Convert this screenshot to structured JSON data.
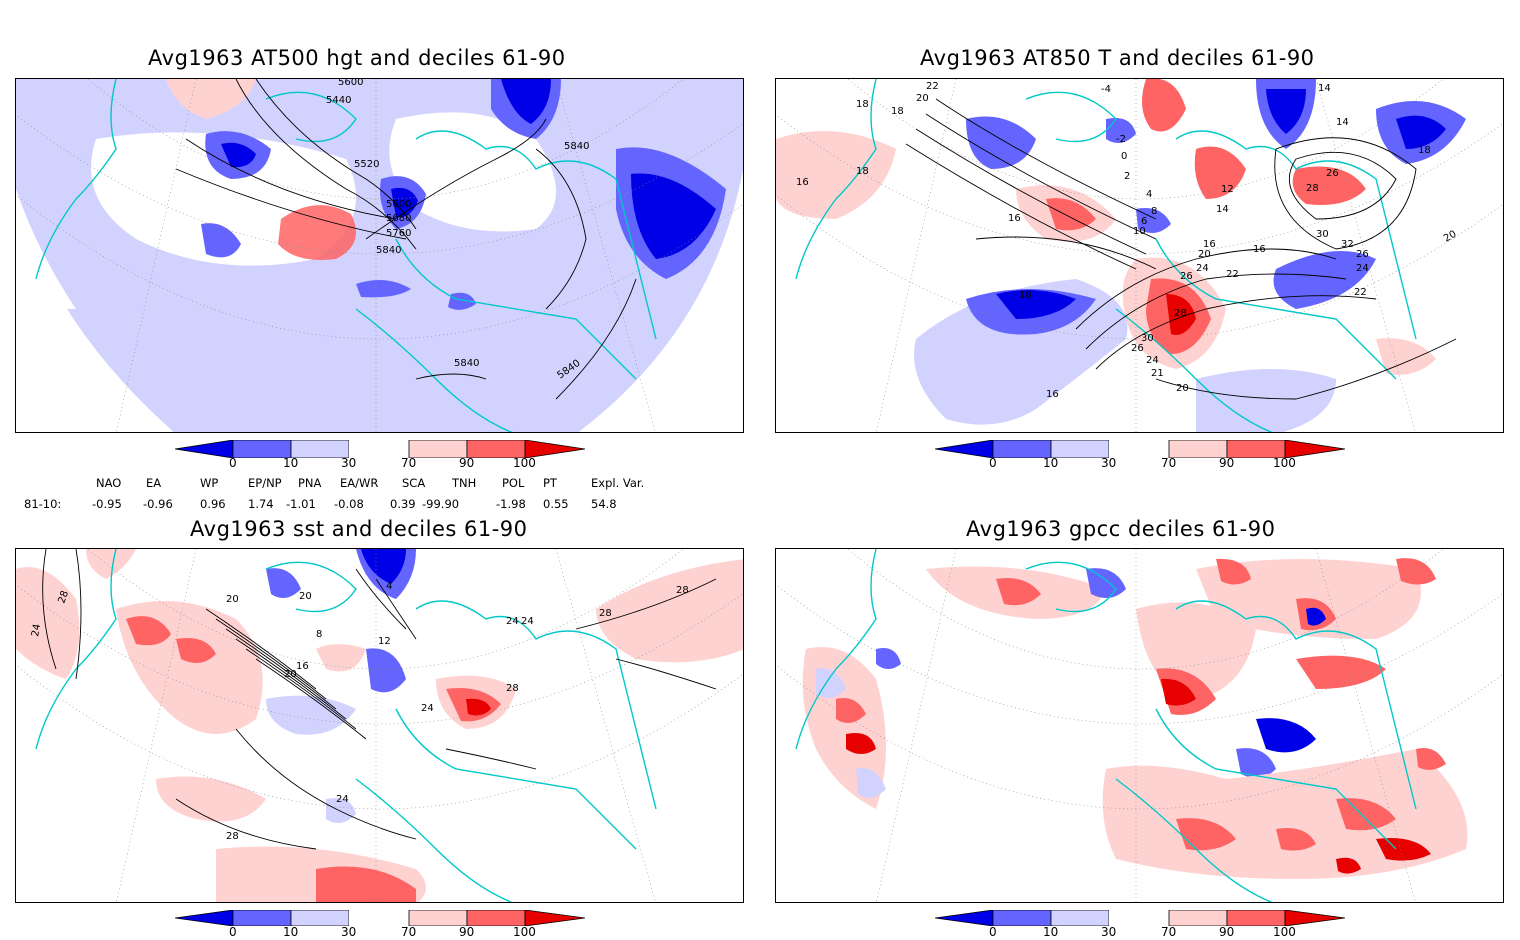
{
  "panels": {
    "p1": {
      "title": "Avg1963 AT500 hgt and deciles 61-90",
      "contour_labels": [
        "5600",
        "5440",
        "5520",
        "5840",
        "5600",
        "5680",
        "5760",
        "5840",
        "5840",
        "5840"
      ]
    },
    "p2": {
      "title": "Avg1963 AT850 T and deciles 61-90",
      "contour_labels": [
        "22",
        "20",
        "18",
        "18",
        "18",
        "16",
        "16",
        "-4",
        "-2",
        "0",
        "2",
        "4",
        "6",
        "8",
        "10",
        "12",
        "14",
        "16",
        "16",
        "20",
        "22",
        "24",
        "26",
        "28",
        "30",
        "26",
        "24",
        "21",
        "20",
        "18",
        "16",
        "14",
        "14",
        "26",
        "28",
        "30",
        "32",
        "26",
        "24",
        "22",
        "20",
        "18",
        "16",
        "16"
      ]
    },
    "p3": {
      "title": "Avg1963 sst and deciles 61-90",
      "contour_labels": [
        "28",
        "24",
        "20",
        "8",
        "12",
        "16",
        "20",
        "24",
        "28",
        "28",
        "24",
        "24",
        "28",
        "24",
        "28",
        "20",
        "4"
      ]
    },
    "p4": {
      "title": "Avg1963 gpcc deciles 61-90"
    }
  },
  "colorbar": {
    "labels": [
      "0",
      "10",
      "30",
      "70",
      "90",
      "100"
    ],
    "colors": [
      "#0000e6",
      "#6464ff",
      "#d2d2ff",
      "#ffffff",
      "#ffd2d2",
      "#ff6464",
      "#e60000"
    ]
  },
  "indices": {
    "row_label": "81-10:",
    "headers": [
      "NAO",
      "EA",
      "WP",
      "EP/NP",
      "PNA",
      "EA/WR",
      "SCA",
      "TNH",
      "POL",
      "PT",
      "Expl. Var."
    ],
    "values": [
      "-0.95",
      "-0.96",
      "0.96",
      "1.74",
      "-1.01",
      "-0.08",
      "0.39",
      "-99.90",
      "-1.98",
      "0.55",
      "54.8"
    ]
  },
  "colors": {
    "coast": "#00c8c8",
    "contour": "#000000",
    "grid": "#888888"
  }
}
